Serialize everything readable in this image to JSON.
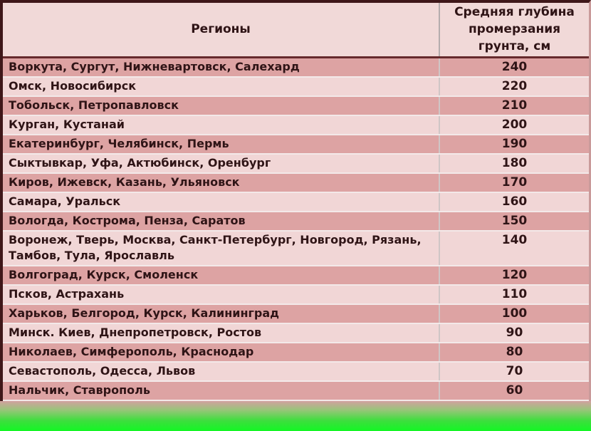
{
  "table": {
    "header": {
      "regions_label": "Регионы",
      "depth_label": "Средняя глубина промерзания грунта, см"
    },
    "rows": [
      {
        "regions": "Воркута, Сургут, Нижневартовск, Салехард",
        "depth": "240"
      },
      {
        "regions": "Омск, Новосибирск",
        "depth": "220"
      },
      {
        "regions": "Тобольск, Петропавловск",
        "depth": "210"
      },
      {
        "regions": "Курган, Кустанай",
        "depth": "200"
      },
      {
        "regions": "Екатеринбург, Челябинск, Пермь",
        "depth": "190"
      },
      {
        "regions": "Сыктывкар, Уфа, Актюбинск, Оренбург",
        "depth": "180"
      },
      {
        "regions": "Киров, Ижевск, Казань, Ульяновск",
        "depth": "170"
      },
      {
        "regions": "Самара, Уральск",
        "depth": "160"
      },
      {
        "regions": "Вологда, Кострома, Пенза, Саратов",
        "depth": "150"
      },
      {
        "regions": "Воронеж, Тверь, Москва, Санкт-Петербург, Новгород, Рязань, Тамбов, Тула, Ярославль",
        "depth": "140"
      },
      {
        "regions": "Волгоград, Курск, Смоленск",
        "depth": "120"
      },
      {
        "regions": "Псков, Астрахань",
        "depth": "110"
      },
      {
        "regions": "Харьков, Белгород, Курск, Калининград",
        "depth": "100"
      },
      {
        "regions": "Минск. Киев, Днепропетровск, Ростов",
        "depth": "90"
      },
      {
        "regions": "Николаев, Симферополь, Краснодар",
        "depth": "80"
      },
      {
        "regions": "Севастополь, Одесса, Львов",
        "depth": "70"
      },
      {
        "regions": "Нальчик, Ставрополь",
        "depth": "60"
      }
    ]
  },
  "colors": {
    "row_dark": "#dda3a3",
    "row_light": "#f1d6d6",
    "header_bg": "#f1d9d8",
    "border_dark": "#3f1719",
    "text": "#2f1416",
    "green_bottom": "#12f724"
  },
  "chart_data": {
    "type": "table",
    "title": "",
    "columns": [
      "Регионы",
      "Средняя глубина промерзания грунта, см"
    ],
    "categories": [
      "Воркута, Сургут, Нижневартовск, Салехард",
      "Омск, Новосибирск",
      "Тобольск, Петропавловск",
      "Курган, Кустанай",
      "Екатеринбург, Челябинск, Пермь",
      "Сыктывкар, Уфа, Актюбинск, Оренбург",
      "Киров, Ижевск, Казань, Ульяновск",
      "Самара, Уральск",
      "Вологда, Кострома, Пенза, Саратов",
      "Воронеж, Тверь, Москва, Санкт-Петербург, Новгород, Рязань, Тамбов, Тула, Ярославль",
      "Волгоград, Курск, Смоленск",
      "Псков, Астрахань",
      "Харьков, Белгород, Курск, Калининград",
      "Минск. Киев, Днепропетровск, Ростов",
      "Николаев, Симферополь, Краснодар",
      "Севастополь, Одесса, Львов",
      "Нальчик, Ставрополь"
    ],
    "values": [
      240,
      220,
      210,
      200,
      190,
      180,
      170,
      160,
      150,
      140,
      120,
      110,
      100,
      90,
      80,
      70,
      60
    ]
  }
}
